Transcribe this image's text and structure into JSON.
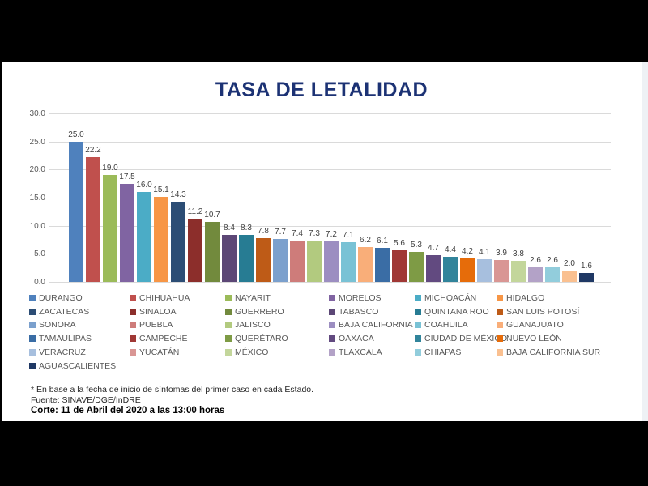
{
  "slide": {
    "background": "#ffffff",
    "frame_color": "#000000"
  },
  "footer": {
    "note": "* En base a la fecha de inicio de síntomas del primer caso en cada Estado.",
    "source": "Fuente: SINAVE/DGE/InDRE",
    "cutoff": "Corte: 11 de Abril del 2020 a las 13:00 horas"
  },
  "chart_data": {
    "type": "bar",
    "title": "TASA DE LETALIDAD",
    "title_color": "#1c3274",
    "categories": [
      "DURANGO",
      "CHIHUAHUA",
      "NAYARIT",
      "MORELOS",
      "MICHOACÁN",
      "HIDALGO",
      "ZACATECAS",
      "SINALOA",
      "GUERRERO",
      "TABASCO",
      "QUINTANA ROO",
      "SAN LUIS POTOSÍ",
      "SONORA",
      "PUEBLA",
      "JALISCO",
      "BAJA CALIFORNIA",
      "COAHUILA",
      "GUANAJUATO",
      "TAMAULIPAS",
      "CAMPECHE",
      "QUERÉTARO",
      "OAXACA",
      "CIUDAD DE MÉXICO",
      "NUEVO LEÓN",
      "VERACRUZ",
      "YUCATÁN",
      "MÉXICO",
      "TLAXCALA",
      "CHIAPAS",
      "BAJA CALIFORNIA SUR",
      "AGUASCALIENTES"
    ],
    "values": [
      25.0,
      22.2,
      19.0,
      17.5,
      16.0,
      15.1,
      14.3,
      11.2,
      10.7,
      8.4,
      8.3,
      7.8,
      7.7,
      7.4,
      7.3,
      7.2,
      7.1,
      6.2,
      6.1,
      5.6,
      5.3,
      4.7,
      4.4,
      4.2,
      4.1,
      3.9,
      3.8,
      2.6,
      2.6,
      2.0,
      1.6
    ],
    "colors": [
      "#4F81BD",
      "#C0504D",
      "#9BBB59",
      "#8064A2",
      "#4BACC6",
      "#F79646",
      "#2C4D75",
      "#8C2E2B",
      "#728A3D",
      "#5C4776",
      "#277C93",
      "#BE5B17",
      "#7BA0CD",
      "#CE7C7A",
      "#B2CA7F",
      "#9C8EC1",
      "#79C2D5",
      "#F9AE79",
      "#3A6DA5",
      "#A03835",
      "#7E9B45",
      "#624A80",
      "#31849B",
      "#E66C0A",
      "#A7BFDE",
      "#D99694",
      "#C3D69B",
      "#B3A2C7",
      "#92CDDC",
      "#FAC090",
      "#1F3864"
    ],
    "xlabel": "",
    "ylabel": "",
    "ylim": [
      0,
      30
    ],
    "yticks": [
      0,
      5,
      10,
      15,
      20,
      25,
      30
    ],
    "ytick_labels": [
      "0.0",
      "5.0",
      "10.0",
      "15.0",
      "20.0",
      "25.0",
      "30.0"
    ],
    "grid": true,
    "legend_position": "bottom",
    "value_labels_shown": true,
    "value_label_decimals": 1
  }
}
